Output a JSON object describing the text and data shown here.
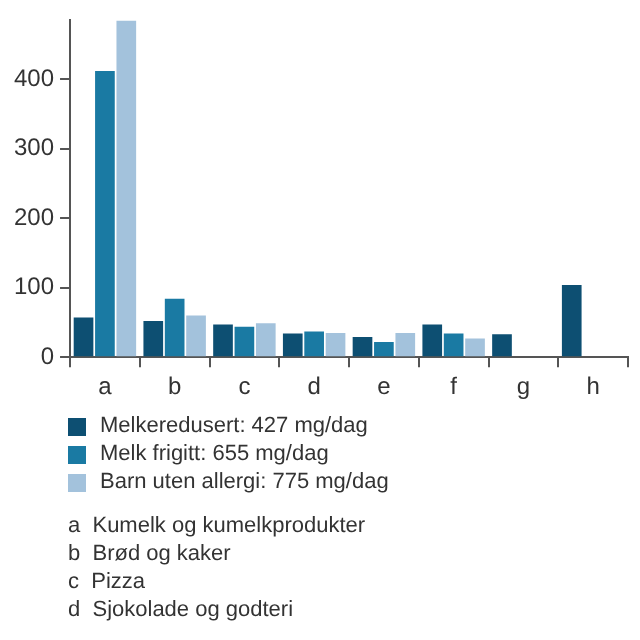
{
  "chart_data": {
    "type": "bar",
    "categories": [
      "a",
      "b",
      "c",
      "d",
      "e",
      "f",
      "g",
      "h"
    ],
    "series": [
      {
        "name": "Melkeredusert: 427 mg/dag",
        "color": "#0d4f72",
        "values": [
          57,
          52,
          47,
          34,
          29,
          47,
          33,
          104
        ]
      },
      {
        "name": "Melk frigitt: 655 mg/dag",
        "color": "#1a7aa3",
        "values": [
          412,
          84,
          44,
          37,
          22,
          34,
          null,
          null
        ]
      },
      {
        "name": "Barn uten allergi: 775 mg/dag",
        "color": "#a3c2dc",
        "values": [
          485,
          60,
          49,
          35,
          35,
          27,
          null,
          null
        ]
      }
    ],
    "ylim": [
      0,
      485
    ],
    "yticks": [
      0,
      100,
      200,
      300,
      400
    ],
    "grid": false,
    "legend": "bottom",
    "annotations": [
      "a  Kumelk og kumelkprodukter",
      "b  Brød og kaker",
      "c  Pizza",
      "d  Sjokolade og godteri"
    ]
  }
}
